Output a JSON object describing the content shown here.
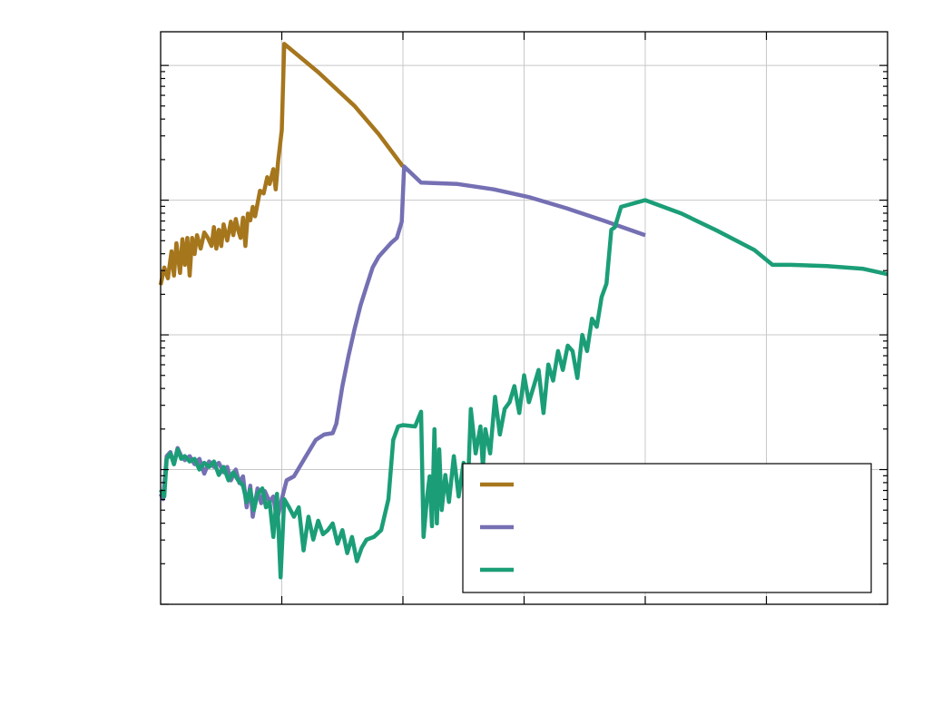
{
  "chart_data": {
    "type": "line",
    "title": "",
    "xlabel": "",
    "ylabel": "",
    "x_range": [
      0,
      6
    ],
    "y_scale": "log",
    "y_range_log10": [
      0,
      4.25
    ],
    "x_gridlines": [
      1,
      2,
      3,
      4,
      5
    ],
    "y_gridlines_log10": [
      1,
      2,
      3,
      4
    ],
    "grid": true,
    "legend_placement": "bottom-right",
    "series": [
      {
        "name": "",
        "color": "#a6761d",
        "points": [
          [
            0.0,
            2.37
          ],
          [
            0.03,
            2.5
          ],
          [
            0.06,
            2.42
          ],
          [
            0.09,
            2.62
          ],
          [
            0.11,
            2.44
          ],
          [
            0.13,
            2.68
          ],
          [
            0.16,
            2.46
          ],
          [
            0.18,
            2.71
          ],
          [
            0.2,
            2.52
          ],
          [
            0.22,
            2.72
          ],
          [
            0.24,
            2.44
          ],
          [
            0.26,
            2.72
          ],
          [
            0.28,
            2.6
          ],
          [
            0.3,
            2.74
          ],
          [
            0.33,
            2.64
          ],
          [
            0.36,
            2.76
          ],
          [
            0.39,
            2.72
          ],
          [
            0.42,
            2.66
          ],
          [
            0.44,
            2.8
          ],
          [
            0.46,
            2.64
          ],
          [
            0.48,
            2.78
          ],
          [
            0.5,
            2.66
          ],
          [
            0.52,
            2.82
          ],
          [
            0.55,
            2.7
          ],
          [
            0.58,
            2.84
          ],
          [
            0.6,
            2.74
          ],
          [
            0.62,
            2.86
          ],
          [
            0.64,
            2.78
          ],
          [
            0.66,
            2.72
          ],
          [
            0.68,
            2.87
          ],
          [
            0.7,
            2.66
          ],
          [
            0.72,
            2.9
          ],
          [
            0.74,
            2.85
          ],
          [
            0.76,
            2.95
          ],
          [
            0.78,
            2.88
          ],
          [
            0.82,
            3.07
          ],
          [
            0.85,
            3.05
          ],
          [
            0.88,
            3.17
          ],
          [
            0.9,
            3.12
          ],
          [
            0.93,
            3.23
          ],
          [
            0.95,
            3.08
          ],
          [
            0.97,
            3.29
          ],
          [
            1.0,
            3.52
          ],
          [
            1.02,
            4.16
          ],
          [
            1.3,
            3.95
          ],
          [
            1.6,
            3.7
          ],
          [
            1.8,
            3.49
          ],
          [
            2.0,
            3.25
          ]
        ]
      },
      {
        "name": "",
        "color": "#7570b3",
        "points": [
          [
            0.0,
            0.82
          ],
          [
            0.02,
            0.78
          ],
          [
            0.05,
            1.1
          ],
          [
            0.08,
            1.13
          ],
          [
            0.11,
            1.04
          ],
          [
            0.14,
            1.16
          ],
          [
            0.17,
            1.1
          ],
          [
            0.2,
            1.07
          ],
          [
            0.24,
            1.1
          ],
          [
            0.28,
            1.04
          ],
          [
            0.32,
            1.08
          ],
          [
            0.36,
            0.97
          ],
          [
            0.4,
            1.06
          ],
          [
            0.44,
            1.02
          ],
          [
            0.48,
            1.05
          ],
          [
            0.52,
            0.98
          ],
          [
            0.55,
            1.02
          ],
          [
            0.58,
            0.92
          ],
          [
            0.62,
            1.0
          ],
          [
            0.65,
            0.9
          ],
          [
            0.68,
            0.95
          ],
          [
            0.71,
            0.72
          ],
          [
            0.74,
            0.88
          ],
          [
            0.76,
            0.65
          ],
          [
            0.8,
            0.86
          ],
          [
            0.83,
            0.75
          ],
          [
            0.86,
            0.84
          ],
          [
            0.9,
            0.76
          ],
          [
            0.93,
            0.8
          ],
          [
            0.96,
            0.62
          ],
          [
            1.0,
            0.78
          ],
          [
            1.04,
            0.92
          ],
          [
            1.1,
            0.95
          ],
          [
            1.2,
            1.1
          ],
          [
            1.28,
            1.22
          ],
          [
            1.35,
            1.26
          ],
          [
            1.42,
            1.27
          ],
          [
            1.45,
            1.34
          ],
          [
            1.5,
            1.62
          ],
          [
            1.55,
            1.84
          ],
          [
            1.6,
            2.04
          ],
          [
            1.65,
            2.22
          ],
          [
            1.7,
            2.36
          ],
          [
            1.75,
            2.5
          ],
          [
            1.8,
            2.58
          ],
          [
            1.86,
            2.64
          ],
          [
            1.9,
            2.68
          ],
          [
            1.95,
            2.72
          ],
          [
            1.99,
            2.84
          ],
          [
            2.01,
            3.25
          ],
          [
            2.15,
            3.13
          ],
          [
            2.45,
            3.12
          ],
          [
            2.75,
            3.08
          ],
          [
            3.05,
            3.02
          ],
          [
            3.35,
            2.94
          ],
          [
            3.65,
            2.85
          ],
          [
            4.0,
            2.74
          ]
        ]
      },
      {
        "name": "",
        "color": "#1b9e77",
        "points": [
          [
            0.0,
            0.85
          ],
          [
            0.03,
            0.8
          ],
          [
            0.05,
            1.08
          ],
          [
            0.08,
            1.12
          ],
          [
            0.11,
            1.04
          ],
          [
            0.14,
            1.15
          ],
          [
            0.17,
            1.08
          ],
          [
            0.2,
            1.1
          ],
          [
            0.24,
            1.06
          ],
          [
            0.28,
            1.08
          ],
          [
            0.32,
            1.0
          ],
          [
            0.36,
            1.05
          ],
          [
            0.4,
            1.02
          ],
          [
            0.44,
            1.06
          ],
          [
            0.48,
            0.96
          ],
          [
            0.52,
            1.02
          ],
          [
            0.56,
            0.92
          ],
          [
            0.6,
            0.98
          ],
          [
            0.64,
            0.92
          ],
          [
            0.68,
            0.88
          ],
          [
            0.71,
            0.76
          ],
          [
            0.74,
            0.85
          ],
          [
            0.77,
            0.7
          ],
          [
            0.8,
            0.82
          ],
          [
            0.84,
            0.86
          ],
          [
            0.87,
            0.72
          ],
          [
            0.9,
            0.76
          ],
          [
            0.93,
            0.5
          ],
          [
            0.96,
            0.82
          ],
          [
            0.99,
            0.2
          ],
          [
            1.02,
            0.78
          ],
          [
            1.06,
            0.72
          ],
          [
            1.1,
            0.65
          ],
          [
            1.14,
            0.72
          ],
          [
            1.18,
            0.4
          ],
          [
            1.22,
            0.65
          ],
          [
            1.26,
            0.48
          ],
          [
            1.3,
            0.62
          ],
          [
            1.34,
            0.52
          ],
          [
            1.38,
            0.55
          ],
          [
            1.42,
            0.6
          ],
          [
            1.46,
            0.45
          ],
          [
            1.5,
            0.55
          ],
          [
            1.54,
            0.38
          ],
          [
            1.58,
            0.5
          ],
          [
            1.62,
            0.32
          ],
          [
            1.66,
            0.42
          ],
          [
            1.7,
            0.48
          ],
          [
            1.76,
            0.5
          ],
          [
            1.82,
            0.55
          ],
          [
            1.88,
            0.78
          ],
          [
            1.92,
            1.22
          ],
          [
            1.96,
            1.32
          ],
          [
            2.0,
            1.33
          ],
          [
            2.1,
            1.32
          ],
          [
            2.15,
            1.43
          ],
          [
            2.17,
            0.5
          ],
          [
            2.2,
            0.8
          ],
          [
            2.22,
            0.95
          ],
          [
            2.24,
            0.58
          ],
          [
            2.26,
            1.3
          ],
          [
            2.28,
            0.6
          ],
          [
            2.3,
            1.15
          ],
          [
            2.32,
            0.7
          ],
          [
            2.35,
            0.96
          ],
          [
            2.38,
            0.76
          ],
          [
            2.42,
            1.1
          ],
          [
            2.46,
            0.8
          ],
          [
            2.5,
            1.05
          ],
          [
            2.54,
            0.96
          ],
          [
            2.56,
            1.45
          ],
          [
            2.6,
            1.12
          ],
          [
            2.64,
            1.32
          ],
          [
            2.66,
            1.02
          ],
          [
            2.68,
            1.3
          ],
          [
            2.72,
            1.12
          ],
          [
            2.76,
            1.54
          ],
          [
            2.8,
            1.26
          ],
          [
            2.84,
            1.45
          ],
          [
            2.88,
            1.5
          ],
          [
            2.92,
            1.62
          ],
          [
            2.96,
            1.42
          ],
          [
            3.0,
            1.7
          ],
          [
            3.04,
            1.5
          ],
          [
            3.08,
            1.62
          ],
          [
            3.12,
            1.74
          ],
          [
            3.16,
            1.42
          ],
          [
            3.2,
            1.78
          ],
          [
            3.24,
            1.66
          ],
          [
            3.28,
            1.88
          ],
          [
            3.32,
            1.74
          ],
          [
            3.36,
            1.92
          ],
          [
            3.4,
            1.88
          ],
          [
            3.44,
            1.68
          ],
          [
            3.48,
            2.0
          ],
          [
            3.52,
            1.88
          ],
          [
            3.56,
            2.12
          ],
          [
            3.6,
            2.06
          ],
          [
            3.64,
            2.28
          ],
          [
            3.68,
            2.38
          ],
          [
            3.72,
            2.78
          ],
          [
            3.75,
            2.8
          ],
          [
            3.8,
            2.95
          ],
          [
            4.0,
            3.0
          ],
          [
            4.3,
            2.9
          ],
          [
            4.6,
            2.77
          ],
          [
            4.9,
            2.63
          ],
          [
            5.05,
            2.52
          ],
          [
            5.2,
            2.52
          ],
          [
            5.5,
            2.51
          ],
          [
            5.8,
            2.49
          ],
          [
            6.0,
            2.45
          ]
        ]
      }
    ]
  }
}
